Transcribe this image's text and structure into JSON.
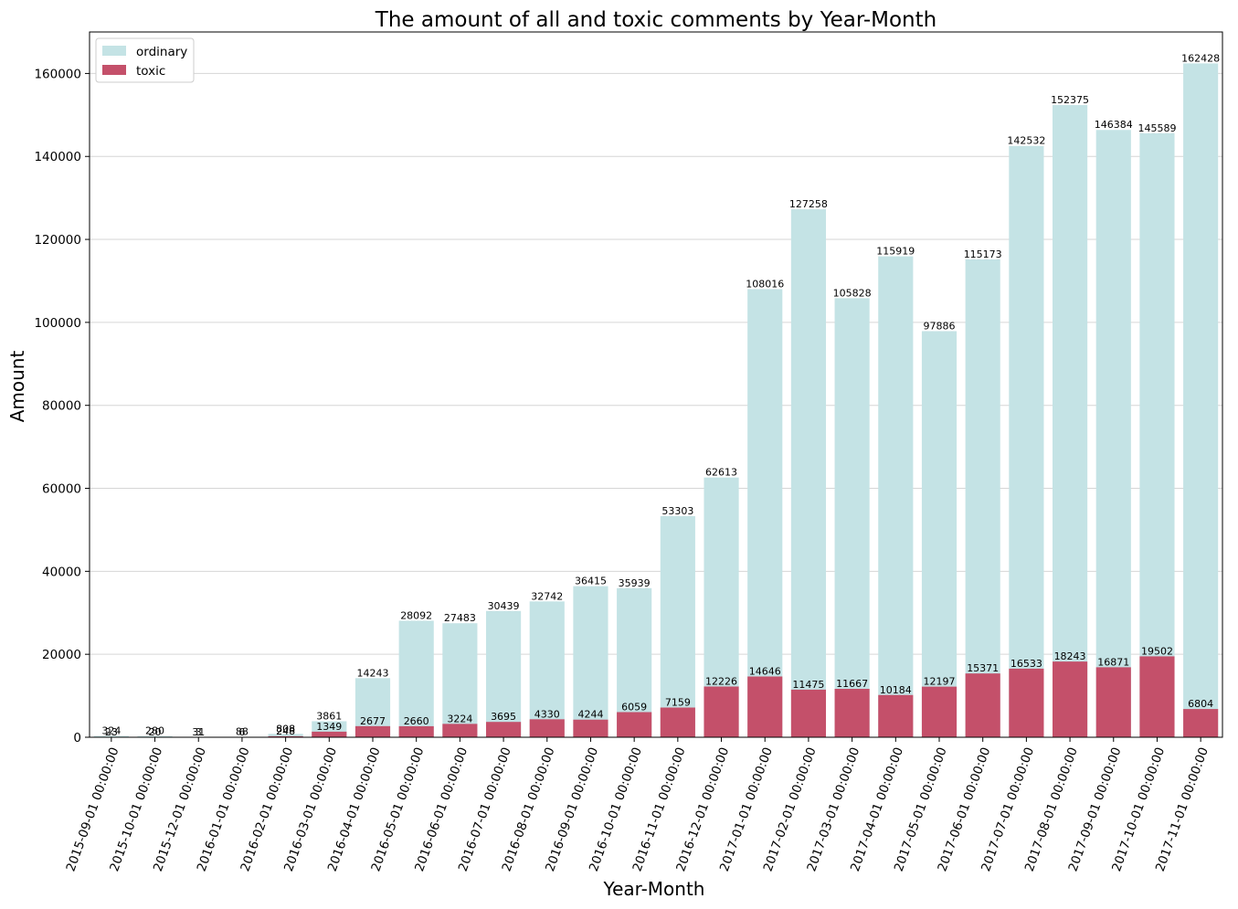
{
  "chart_data": {
    "type": "bar",
    "title": "The amount of all and toxic comments by Year-Month",
    "xlabel": "Year-Month",
    "ylabel": "Amount",
    "ylim": [
      0,
      170000
    ],
    "yticks": [
      "0",
      "20000",
      "40000",
      "60000",
      "80000",
      "100000",
      "120000",
      "140000",
      "160000"
    ],
    "grid": "y",
    "legend_position": "top-left",
    "categories": [
      "2015-09-01 00:00:00",
      "2015-10-01 00:00:00",
      "2015-12-01 00:00:00",
      "2016-01-01 00:00:00",
      "2016-02-01 00:00:00",
      "2016-03-01 00:00:00",
      "2016-04-01 00:00:00",
      "2016-05-01 00:00:00",
      "2016-06-01 00:00:00",
      "2016-07-01 00:00:00",
      "2016-08-01 00:00:00",
      "2016-09-01 00:00:00",
      "2016-10-01 00:00:00",
      "2016-11-01 00:00:00",
      "2016-12-01 00:00:00",
      "2017-01-01 00:00:00",
      "2017-02-01 00:00:00",
      "2017-03-01 00:00:00",
      "2017-04-01 00:00:00",
      "2017-05-01 00:00:00",
      "2017-06-01 00:00:00",
      "2017-07-01 00:00:00",
      "2017-08-01 00:00:00",
      "2017-09-01 00:00:00",
      "2017-10-01 00:00:00",
      "2017-11-01 00:00:00"
    ],
    "series": [
      {
        "name": "ordinary",
        "color": "#c4e3e5",
        "values": [
          324,
          280,
          31,
          88,
          808,
          3861,
          14243,
          28092,
          27483,
          30439,
          32742,
          36415,
          35939,
          53303,
          62613,
          108016,
          127258,
          105828,
          115919,
          97886,
          115173,
          142532,
          152375,
          146384,
          145589,
          162428
        ],
        "labels": [
          "324",
          "280",
          "31",
          "88",
          "808",
          "3861",
          "14243",
          "28092",
          "27483",
          "30439",
          "32742",
          "36415",
          "35939",
          "53303",
          "62613",
          "108016",
          "127258",
          "105828",
          "115919",
          "97886",
          "115173",
          "142532",
          "152375",
          "146384",
          "145589",
          "162428"
        ]
      },
      {
        "name": "toxic",
        "color": "#c4506a",
        "values": [
          23,
          20,
          3,
          6,
          248,
          1349,
          2677,
          2660,
          3224,
          3695,
          4330,
          4244,
          6059,
          7159,
          12226,
          14646,
          11475,
          11667,
          10184,
          12197,
          15371,
          16533,
          18243,
          16871,
          19502,
          6804
        ],
        "labels": [
          "23",
          "20",
          "3",
          "6",
          "248",
          "1349",
          "2677",
          "2660",
          "3224",
          "3695",
          "4330",
          "4244",
          "6059",
          "7159",
          "12226",
          "14646",
          "11475",
          "11667",
          "10184",
          "12197",
          "15371",
          "16533",
          "18243",
          "16871",
          "19502",
          "6804"
        ]
      }
    ]
  }
}
